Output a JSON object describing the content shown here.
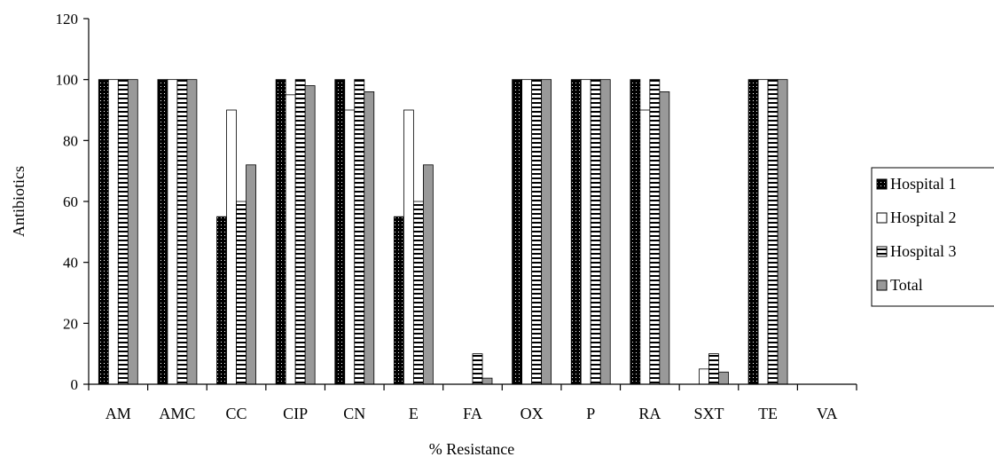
{
  "chart_data": {
    "type": "bar",
    "title": "",
    "xlabel": "% Resistance",
    "ylabel": "Antibiotics",
    "ylim": [
      0,
      120
    ],
    "yticks": [
      "0",
      "20",
      "40",
      "60",
      "80",
      "100",
      "120"
    ],
    "grid": false,
    "legend_position": "right",
    "categories": [
      "AM",
      "AMC",
      "CC",
      "CIP",
      "CN",
      "E",
      "FA",
      "OX",
      "P",
      "RA",
      "SXT",
      "TE",
      "VA"
    ],
    "series": [
      {
        "name": "Hospital 1",
        "values": [
          100,
          100,
          55,
          100,
          100,
          55,
          0,
          100,
          100,
          100,
          0,
          100,
          0
        ],
        "pattern": "dots-on-black"
      },
      {
        "name": "Hospital 2",
        "values": [
          100,
          100,
          90,
          95,
          90,
          90,
          0,
          100,
          100,
          90,
          5,
          100,
          0
        ],
        "pattern": "white"
      },
      {
        "name": "Hospital 3",
        "values": [
          100,
          100,
          60,
          100,
          100,
          60,
          10,
          100,
          100,
          100,
          10,
          100,
          0
        ],
        "pattern": "horizontal-stripes"
      },
      {
        "name": "Total",
        "values": [
          100,
          100,
          72,
          98,
          96,
          72,
          2,
          100,
          100,
          96,
          4,
          100,
          0
        ],
        "pattern": "gray"
      }
    ]
  }
}
